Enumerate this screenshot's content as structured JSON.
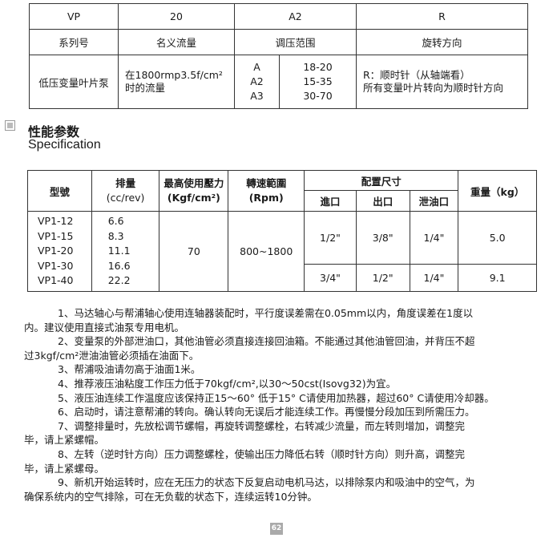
{
  "model_table": {
    "codes": [
      "VP",
      "20",
      "A2",
      "R"
    ],
    "headers": [
      "系列号",
      "名义流量",
      "调压范围",
      "旋转方向"
    ],
    "series": "低压变量叶片泵",
    "flow_line1": "在1800rmp3.5f/cm²",
    "flow_line2": "时的流量",
    "pressure_codes": [
      "A",
      "A2",
      "A3"
    ],
    "pressure_ranges": [
      "18-20",
      "15-35",
      "30-70"
    ],
    "rotation_line1": "R：顺时针（从轴端看）",
    "rotation_line2": "所有变量叶片转向为顺时针方向"
  },
  "section": {
    "title": "性能参数",
    "subtitle": "Specification"
  },
  "spec_table": {
    "headers": {
      "model": "型號",
      "displacement": "排量",
      "displacement_unit": "(cc/rev)",
      "max_pressure": "最高使用壓力",
      "max_pressure_unit": "(Kgf/cm²)",
      "speed": "轉速範圍",
      "speed_unit": "(Rpm)",
      "ports": "配置尺寸",
      "inlet": "進口",
      "outlet": "出口",
      "drain": "泄油口",
      "weight": "重量（kg）"
    },
    "models": [
      "VP1-12",
      "VP1-15",
      "VP1-20",
      "VP1-30",
      "VP1-40"
    ],
    "displacements": [
      "6.6",
      "8.3",
      "11.1",
      "16.6",
      "22.2"
    ],
    "max_pressure": "70",
    "speed_range": "800~1800",
    "groups": [
      {
        "inlet": "1/2\"",
        "outlet": "3/8\"",
        "drain": "1/4\"",
        "weight": "5.0"
      },
      {
        "inlet": "3/4\"",
        "outlet": "1/2\"",
        "drain": "1/4\"",
        "weight": "9.1"
      }
    ]
  },
  "notes": [
    [
      "1、马达轴心与帮浦轴心使用连轴器装配时，平行度误差需在0.05mm以内，角度误差在1度以",
      "内。建议使用直接式油泵专用电机。"
    ],
    [
      "2、变量泵的外部泄油口，其他油管必须直接连接回油箱。不能通过其他油管回油，并背压不超",
      "过3kgf/cm²泄油油管必须插在油面下。"
    ],
    [
      "3、帮浦吸油请勿高于油面1米。"
    ],
    [
      "4、推荐液压油粘度工作压力低于70kgf/cm²,以30～50cst(Isovg32)为宜。"
    ],
    [
      "5、液压油连续工作温度应该保持正15～60° 低于15° C请使用加热器，超过60° C请使用冷却器。"
    ],
    [
      "6、启动时，请注意帮浦的转向。确认转向无误后才能连续工作。再慢慢分段加压到所需压力。"
    ],
    [
      "7、调整排量时，先放松调节螺帽，再旋转调整螺栓，右转减少流量，而左转则增加，调整完",
      "毕，请上紧螺帽。"
    ],
    [
      "8、左转（逆时针方向）压力调整螺栓，使输出压力降低右转（顺时针方向）则升高，调整完",
      "毕，请上紧螺母。"
    ],
    [
      "9、新机开始运转时，应在无压力的状态下反复启动电机马达，以排除泵内和吸油中的空气，为",
      "确保系统内的空气排除，可在无负载的状态下，连续运转10分钟。"
    ]
  ],
  "page_number": "62"
}
